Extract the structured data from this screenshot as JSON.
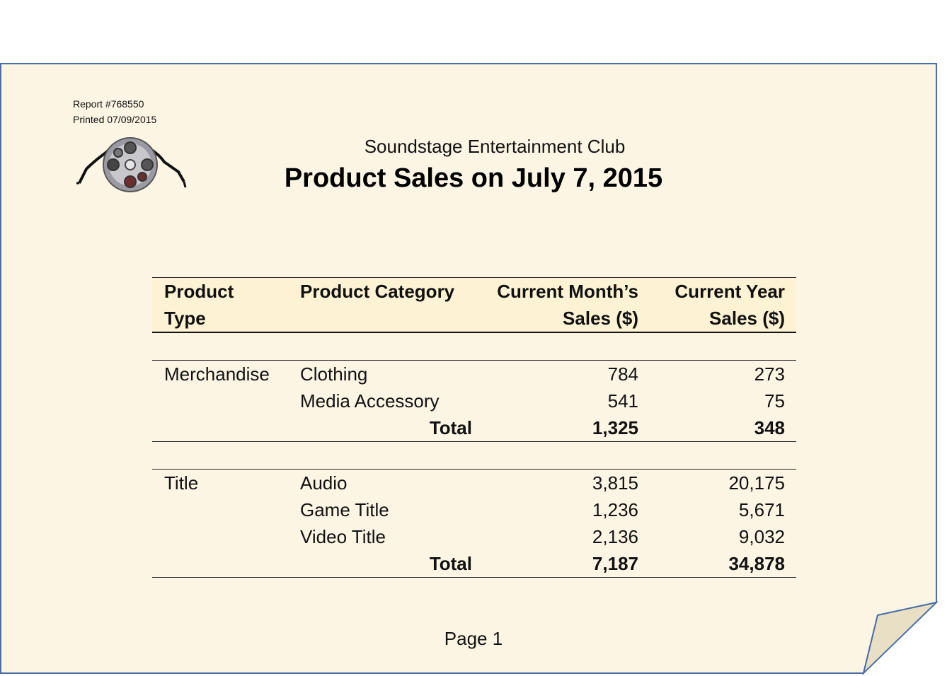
{
  "header": {
    "report_id": "Report #768550",
    "printed": "Printed 07/09/2015",
    "logo_icon": "film-reel-icon",
    "club_name": "Soundstage Entertainment Club",
    "title": "Product Sales on July 7, 2015"
  },
  "table": {
    "columns": {
      "product_type": [
        "Product",
        "Type"
      ],
      "product_category": [
        "Product Category",
        ""
      ],
      "month_sales": [
        "Current Month’s",
        "Sales ($)"
      ],
      "year_sales": [
        "Current Year",
        "Sales ($)"
      ]
    },
    "groups": [
      {
        "type": "Merchandise",
        "rows": [
          {
            "category": "Clothing",
            "month": "784",
            "year": "273"
          },
          {
            "category": "Media Accessory",
            "month": "541",
            "year": "75"
          }
        ],
        "total": {
          "label": "Total",
          "month": "1,325",
          "year": "348"
        }
      },
      {
        "type": "Title",
        "rows": [
          {
            "category": "Audio",
            "month": "3,815",
            "year": "20,175"
          },
          {
            "category": "Game Title",
            "month": "1,236",
            "year": "5,671"
          },
          {
            "category": "Video Title",
            "month": "2,136",
            "year": "9,032"
          }
        ],
        "total": {
          "label": "Total",
          "month": "7,187",
          "year": "34,878"
        }
      }
    ]
  },
  "footer": {
    "page": "Page 1"
  },
  "colors": {
    "paper": "#fdf5e4",
    "paper_border": "#4a6fa5",
    "header_fill": "#fdf3d4",
    "curl_fill": "#e8dfc4"
  }
}
